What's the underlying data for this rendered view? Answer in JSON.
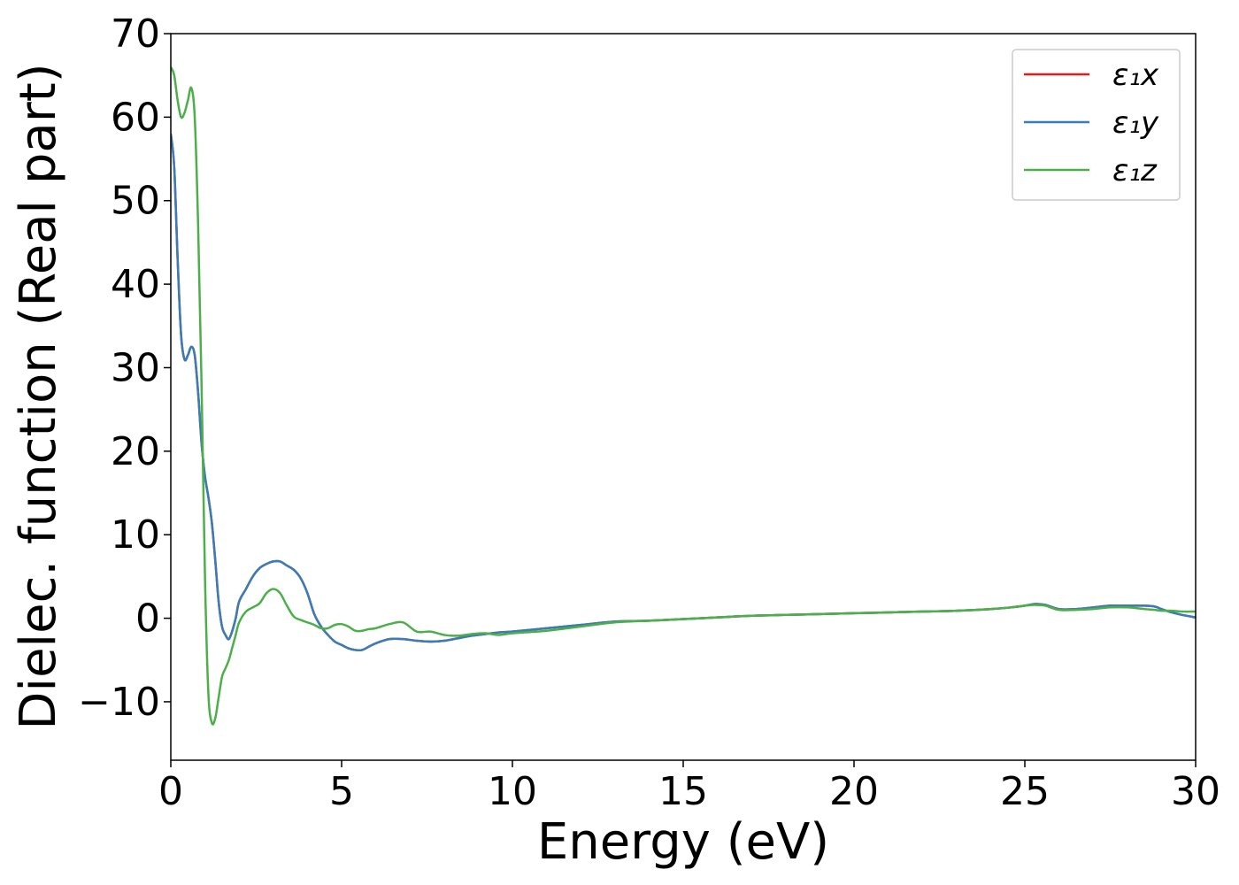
{
  "chart_data": {
    "type": "line",
    "xlabel": "Energy (eV)",
    "ylabel": "Dielec. function (Real part)",
    "xlim": [
      0,
      30
    ],
    "ylim": [
      -17,
      70
    ],
    "grid": false,
    "legend_placement": "top-right",
    "x_ticks": [
      0,
      5,
      10,
      15,
      20,
      25,
      30
    ],
    "x_tick_labels": [
      "0",
      "5",
      "10",
      "15",
      "20",
      "25",
      "30"
    ],
    "y_ticks": [
      -10,
      0,
      10,
      20,
      30,
      40,
      50,
      60,
      70
    ],
    "y_tick_labels": [
      "−10",
      "0",
      "10",
      "20",
      "30",
      "40",
      "50",
      "60",
      "70"
    ],
    "series": [
      {
        "name": "ε₁x",
        "color": "#e41a1c",
        "x": [
          0,
          0.1,
          0.2,
          0.3,
          0.4,
          0.5,
          0.6,
          0.7,
          0.8,
          0.9,
          1.0,
          1.1,
          1.2,
          1.3,
          1.4,
          1.5,
          1.6,
          1.7,
          1.8,
          1.9,
          2.0,
          2.2,
          2.4,
          2.6,
          2.8,
          3.0,
          3.2,
          3.4,
          3.6,
          3.8,
          4.0,
          4.2,
          4.4,
          4.6,
          4.8,
          5.0,
          5.2,
          5.4,
          5.6,
          5.8,
          6.0,
          6.4,
          6.8,
          7.2,
          7.6,
          8.0,
          8.4,
          8.8,
          9.2,
          9.6,
          10.0,
          11.0,
          12.0,
          13.0,
          14.0,
          15.0,
          16.0,
          17.0,
          18.0,
          19.0,
          20.0,
          21.0,
          22.0,
          23.0,
          24.0,
          24.6,
          25.0,
          25.3,
          25.6,
          26.0,
          26.5,
          27.0,
          27.5,
          28.0,
          28.5,
          28.8,
          29.0,
          29.3,
          29.6,
          30.0
        ],
        "y": [
          58,
          54,
          43,
          34,
          31,
          31.5,
          32.5,
          31.5,
          27,
          21,
          17,
          14.5,
          11.5,
          7,
          2,
          -1,
          -2,
          -2.5,
          -1.5,
          0,
          2,
          3.5,
          5,
          6,
          6.5,
          6.8,
          6.8,
          6.3,
          5.8,
          4.8,
          3,
          0.5,
          -1,
          -2,
          -2.8,
          -3.2,
          -3.6,
          -3.8,
          -3.8,
          -3.4,
          -3,
          -2.5,
          -2.5,
          -2.7,
          -2.8,
          -2.7,
          -2.4,
          -2.1,
          -1.9,
          -1.7,
          -1.6,
          -1.2,
          -0.8,
          -0.4,
          -0.3,
          -0.1,
          0.1,
          0.3,
          0.4,
          0.5,
          0.6,
          0.7,
          0.8,
          0.9,
          1.1,
          1.3,
          1.5,
          1.7,
          1.6,
          1.1,
          1.1,
          1.3,
          1.5,
          1.5,
          1.5,
          1.4,
          1.1,
          0.7,
          0.4,
          0.1
        ]
      },
      {
        "name": "ε₁y",
        "color": "#377eb8",
        "x": [
          0,
          0.1,
          0.2,
          0.3,
          0.4,
          0.5,
          0.6,
          0.7,
          0.8,
          0.9,
          1.0,
          1.1,
          1.2,
          1.3,
          1.4,
          1.5,
          1.6,
          1.7,
          1.8,
          1.9,
          2.0,
          2.2,
          2.4,
          2.6,
          2.8,
          3.0,
          3.2,
          3.4,
          3.6,
          3.8,
          4.0,
          4.2,
          4.4,
          4.6,
          4.8,
          5.0,
          5.2,
          5.4,
          5.6,
          5.8,
          6.0,
          6.4,
          6.8,
          7.2,
          7.6,
          8.0,
          8.4,
          8.8,
          9.2,
          9.6,
          10.0,
          11.0,
          12.0,
          13.0,
          14.0,
          15.0,
          16.0,
          17.0,
          18.0,
          19.0,
          20.0,
          21.0,
          22.0,
          23.0,
          24.0,
          24.6,
          25.0,
          25.3,
          25.6,
          26.0,
          26.5,
          27.0,
          27.5,
          28.0,
          28.5,
          28.8,
          29.0,
          29.3,
          29.6,
          30.0
        ],
        "y": [
          58,
          54,
          43,
          34,
          31,
          31.5,
          32.5,
          31.5,
          27,
          21,
          17,
          14.5,
          11.5,
          7,
          2,
          -1,
          -2,
          -2.5,
          -1.5,
          0,
          2,
          3.5,
          5,
          6,
          6.5,
          6.8,
          6.8,
          6.3,
          5.8,
          4.8,
          3,
          0.5,
          -1,
          -2,
          -2.8,
          -3.2,
          -3.6,
          -3.8,
          -3.8,
          -3.4,
          -3,
          -2.5,
          -2.5,
          -2.7,
          -2.8,
          -2.7,
          -2.4,
          -2.1,
          -1.9,
          -1.7,
          -1.6,
          -1.2,
          -0.8,
          -0.4,
          -0.3,
          -0.1,
          0.1,
          0.3,
          0.4,
          0.5,
          0.6,
          0.7,
          0.8,
          0.9,
          1.1,
          1.3,
          1.5,
          1.7,
          1.6,
          1.1,
          1.1,
          1.3,
          1.5,
          1.5,
          1.5,
          1.4,
          1.1,
          0.7,
          0.4,
          0.1
        ]
      },
      {
        "name": "ε₁z",
        "color": "#4daf4a",
        "x": [
          0,
          0.1,
          0.2,
          0.3,
          0.4,
          0.5,
          0.6,
          0.7,
          0.8,
          0.9,
          1.0,
          1.1,
          1.2,
          1.3,
          1.4,
          1.5,
          1.6,
          1.7,
          1.8,
          1.9,
          2.0,
          2.2,
          2.4,
          2.6,
          2.8,
          3.0,
          3.2,
          3.4,
          3.6,
          3.8,
          4.0,
          4.2,
          4.4,
          4.6,
          4.8,
          5.0,
          5.2,
          5.4,
          5.6,
          5.8,
          6.0,
          6.4,
          6.8,
          7.2,
          7.6,
          8.0,
          8.4,
          8.8,
          9.2,
          9.6,
          10.0,
          11.0,
          12.0,
          13.0,
          14.0,
          15.0,
          16.0,
          17.0,
          18.0,
          19.0,
          20.0,
          21.0,
          22.0,
          23.0,
          24.0,
          24.6,
          25.0,
          25.3,
          25.6,
          26.0,
          26.5,
          27.0,
          27.5,
          28.0,
          28.5,
          28.8,
          29.0,
          29.3,
          29.6,
          30.0
        ],
        "y": [
          66,
          65,
          62,
          60,
          60.5,
          62,
          63.5,
          60,
          47,
          28,
          5,
          -9,
          -12.5,
          -12,
          -9.5,
          -7,
          -6,
          -5,
          -3.5,
          -2,
          -0.5,
          0.8,
          1.3,
          1.8,
          3,
          3.5,
          3,
          1.5,
          0.2,
          -0.2,
          -0.5,
          -0.8,
          -1.2,
          -1.2,
          -0.8,
          -0.7,
          -1,
          -1.5,
          -1.5,
          -1.3,
          -1.2,
          -0.7,
          -0.5,
          -1.6,
          -1.6,
          -2,
          -2.1,
          -1.9,
          -1.8,
          -2,
          -1.8,
          -1.5,
          -1,
          -0.5,
          -0.3,
          -0.1,
          0.1,
          0.3,
          0.4,
          0.5,
          0.6,
          0.7,
          0.8,
          0.9,
          1.1,
          1.3,
          1.5,
          1.6,
          1.5,
          1,
          1,
          1.1,
          1.3,
          1.3,
          1.1,
          1,
          0.9,
          0.9,
          0.8,
          0.8
        ]
      }
    ]
  }
}
